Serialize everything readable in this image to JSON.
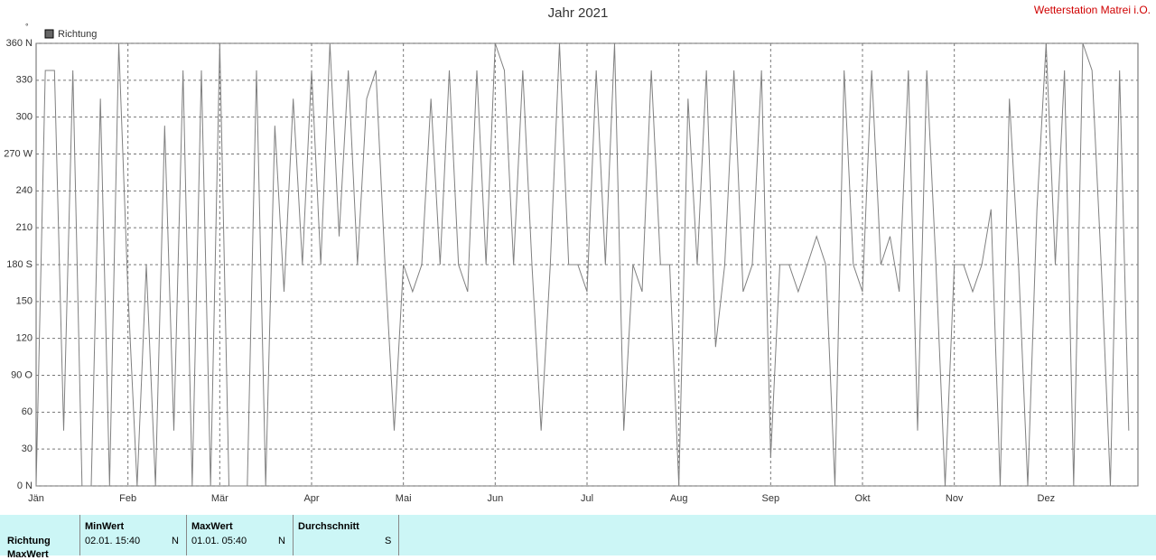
{
  "chart_data": {
    "type": "line",
    "title": "Jahr 2021",
    "station": "Wetterstation Matrei i.O.",
    "y_unit": "°",
    "categories": [
      "Jän",
      null,
      null,
      null,
      null,
      null,
      null,
      null,
      null,
      null,
      "Feb",
      null,
      null,
      null,
      null,
      null,
      null,
      null,
      null,
      null,
      "Mär",
      null,
      null,
      null,
      null,
      null,
      null,
      null,
      null,
      null,
      "Apr",
      null,
      null,
      null,
      null,
      null,
      null,
      null,
      null,
      null,
      "Mai",
      null,
      null,
      null,
      null,
      null,
      null,
      null,
      null,
      null,
      "Jun",
      null,
      null,
      null,
      null,
      null,
      null,
      null,
      null,
      null,
      "Jul",
      null,
      null,
      null,
      null,
      null,
      null,
      null,
      null,
      null,
      "Aug",
      null,
      null,
      null,
      null,
      null,
      null,
      null,
      null,
      null,
      "Sep",
      null,
      null,
      null,
      null,
      null,
      null,
      null,
      null,
      null,
      "Okt",
      null,
      null,
      null,
      null,
      null,
      null,
      null,
      null,
      null,
      "Nov",
      null,
      null,
      null,
      null,
      null,
      null,
      null,
      null,
      null,
      "Dez",
      null,
      null,
      null,
      null,
      null,
      null,
      null,
      null,
      null
    ],
    "series": [
      {
        "name": "Richtung",
        "color": "#808080",
        "values": [
          0,
          338,
          338,
          45,
          338,
          0,
          0,
          315,
          0,
          360,
          158,
          0,
          180,
          0,
          293,
          45,
          338,
          0,
          338,
          0,
          360,
          0,
          0,
          0,
          338,
          0,
          293,
          158,
          315,
          180,
          338,
          180,
          360,
          203,
          338,
          180,
          315,
          338,
          180,
          45,
          180,
          158,
          180,
          315,
          180,
          338,
          180,
          158,
          338,
          180,
          360,
          338,
          180,
          338,
          180,
          45,
          180,
          360,
          180,
          180,
          158,
          338,
          180,
          360,
          45,
          180,
          158,
          338,
          180,
          180,
          0,
          315,
          180,
          338,
          113,
          180,
          338,
          158,
          180,
          338,
          23,
          180,
          180,
          158,
          180,
          203,
          180,
          0,
          338,
          180,
          158,
          338,
          180,
          203,
          158,
          338,
          45,
          338,
          180,
          0,
          180,
          180,
          158,
          180,
          225,
          0,
          315,
          180,
          0,
          225,
          360,
          180,
          338,
          0,
          360,
          338,
          180,
          0,
          338,
          45
        ]
      }
    ],
    "ylim": [
      0,
      360
    ],
    "yticks": [
      {
        "value": 0,
        "label": "0 N"
      },
      30,
      60,
      {
        "value": 90,
        "label": "90 O"
      },
      120,
      150,
      {
        "value": 180,
        "label": "180 S"
      },
      210,
      240,
      {
        "value": 270,
        "label": "270 W"
      },
      300,
      330,
      {
        "value": 360,
        "label": "360 N"
      }
    ],
    "grid": true
  },
  "table": {
    "row_labels": [
      "Richtung",
      "MaxWert"
    ],
    "columns": [
      {
        "header": "MinWert",
        "time": "02.01. 15:40",
        "dir": "N"
      },
      {
        "header": "MaxWert",
        "time": "01.01. 05:40",
        "dir": "N"
      },
      {
        "header": "Durchschnitt",
        "dir": "S"
      }
    ]
  }
}
